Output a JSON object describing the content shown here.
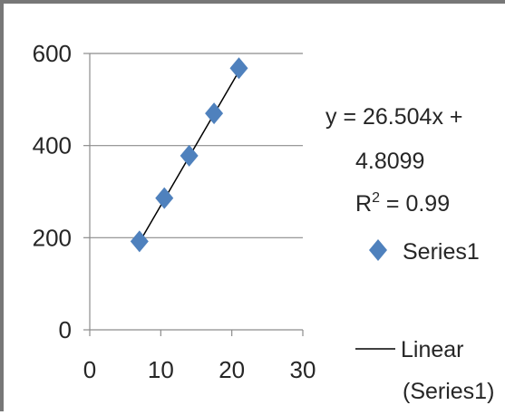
{
  "chart_data": {
    "type": "scatter",
    "xlim": [
      0,
      30
    ],
    "ylim": [
      0,
      600
    ],
    "x_ticks": [
      "0",
      "10",
      "20",
      "30"
    ],
    "y_ticks": [
      "0",
      "200",
      "400",
      "600"
    ],
    "grid": true,
    "series": [
      {
        "name": "Series1",
        "x": [
          7,
          10.5,
          14,
          17.5,
          21
        ],
        "y": [
          192,
          286,
          378,
          470,
          568
        ],
        "color": "#4F81BD",
        "marker": "diamond"
      }
    ],
    "trendline": {
      "name": "Linear (Series1)",
      "slope": 26.504,
      "intercept": 4.8099,
      "x_range": [
        7,
        21
      ],
      "color": "#000000"
    },
    "annotation": {
      "equation_line1": "y = 26.504x +",
      "equation_line2": "4.8099",
      "r2_prefix": "R",
      "r2_exp": "2",
      "r2_suffix": " = 0.99"
    },
    "legend": {
      "position": "right",
      "series_label": "Series1",
      "trend_label_line1": "Linear",
      "trend_label_line2": "(Series1)"
    }
  }
}
